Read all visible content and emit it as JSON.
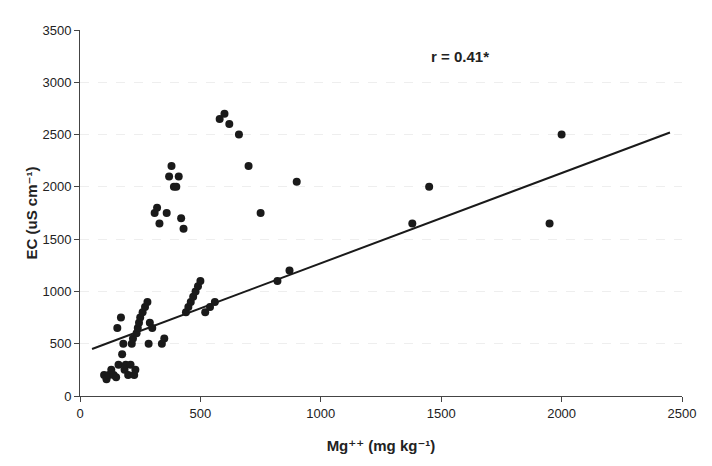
{
  "chart_data": {
    "type": "scatter",
    "xlabel": "Mg⁺⁺ (mg kg⁻¹)",
    "ylabel": "EC (uS cm⁻¹)",
    "annotation": "r = 0.41*",
    "series": [
      {
        "type": "scatter",
        "marker": "circle",
        "color": "#1a1a1a",
        "x": [
          100,
          110,
          120,
          130,
          140,
          150,
          155,
          160,
          170,
          175,
          180,
          185,
          190,
          200,
          210,
          215,
          220,
          225,
          230,
          235,
          240,
          245,
          250,
          260,
          270,
          280,
          285,
          290,
          300,
          310,
          320,
          330,
          340,
          350,
          360,
          370,
          380,
          390,
          400,
          410,
          420,
          430,
          440,
          450,
          460,
          470,
          480,
          490,
          500,
          520,
          540,
          560,
          580,
          600,
          620,
          660,
          700,
          750,
          820,
          870,
          900,
          1380,
          1450,
          1950,
          2000
        ],
        "values": [
          200,
          160,
          200,
          250,
          200,
          180,
          650,
          300,
          750,
          400,
          500,
          250,
          300,
          200,
          300,
          500,
          550,
          200,
          250,
          600,
          650,
          700,
          750,
          800,
          850,
          900,
          500,
          700,
          650,
          1750,
          1800,
          1650,
          500,
          550,
          1750,
          2100,
          2200,
          2000,
          2000,
          2100,
          1700,
          1600,
          800,
          850,
          900,
          950,
          1000,
          1050,
          1100,
          800,
          850,
          900,
          2650,
          2700,
          2600,
          2500,
          2200,
          1750,
          1100,
          1200,
          2050,
          1650,
          2000,
          1650,
          2500
        ]
      },
      {
        "type": "line",
        "line_style": "solid",
        "color": "#1a1a1a",
        "x": [
          50,
          2450
        ],
        "values": [
          450,
          2520
        ]
      }
    ],
    "xlim": [
      0,
      2500
    ],
    "ylim": [
      0,
      3500
    ],
    "xticks": [
      0,
      500,
      1000,
      1500,
      2000,
      2500
    ],
    "yticks": [
      0,
      500,
      1000,
      1500,
      2000,
      2500,
      3000,
      3500
    ],
    "grid": "y"
  }
}
